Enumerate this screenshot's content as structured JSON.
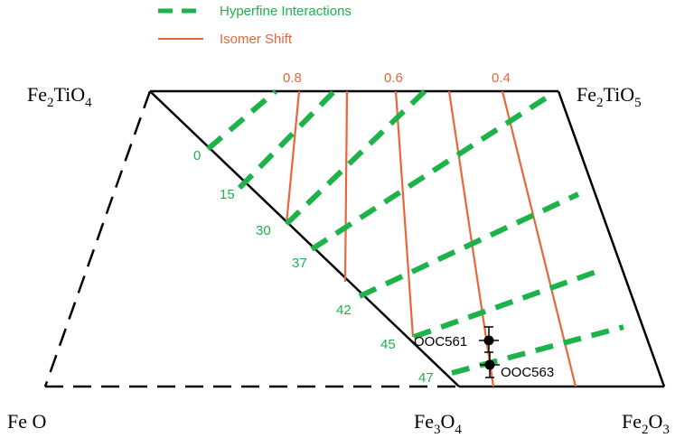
{
  "legend": {
    "hyperfine_label": "Hyperfine Interactions",
    "isomer_label": "Isomer Shift"
  },
  "colors": {
    "hyperfine": "#1db34a",
    "isomer": "#e8663c",
    "frame": "#000000"
  },
  "vertices": {
    "top_left": {
      "name": "Fe",
      "sub": "2",
      "name2": "TiO",
      "sub2": "4"
    },
    "top_right": {
      "name": "Fe",
      "sub": "2",
      "name2": "TiO",
      "sub2": "5"
    },
    "bottom_left": {
      "name": "Fe O"
    },
    "bottom_mid": {
      "name": "Fe",
      "sub": "3",
      "name2": "O",
      "sub2": "4"
    },
    "bottom_right": {
      "name": "Fe",
      "sub": "2",
      "name2": "O",
      "sub2": "3"
    }
  },
  "isomer_labels": [
    "0.8",
    "0.6",
    "0.4"
  ],
  "hyperfine_labels": [
    "0",
    "15",
    "30",
    "37",
    "42",
    "45",
    "47"
  ],
  "samples": [
    "OOC561",
    "OOC563"
  ]
}
